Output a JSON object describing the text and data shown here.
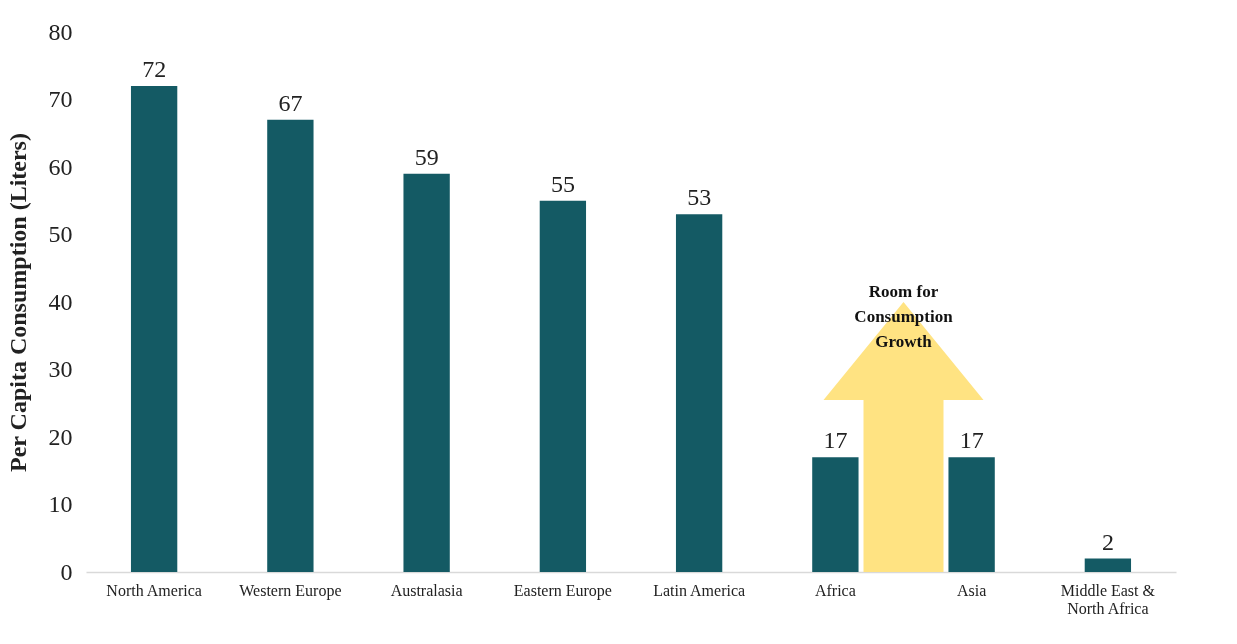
{
  "chart_data": {
    "type": "bar",
    "ylabel": "Per Capita Consumption (Liters)",
    "categories": [
      "North America",
      "Western Europe",
      "Australasia",
      "Eastern Europe",
      "Latin America",
      "Africa",
      "Asia",
      "Middle East & North Africa"
    ],
    "values": [
      72,
      67,
      59,
      55,
      53,
      17,
      17,
      2
    ],
    "color": "#145a64",
    "ylim": [
      0,
      80
    ],
    "yticks": [
      0,
      10,
      20,
      30,
      40,
      50,
      60,
      70,
      80
    ],
    "grid": false,
    "data_labels": true,
    "annotations": [
      "Room for Consumption Growth"
    ]
  }
}
